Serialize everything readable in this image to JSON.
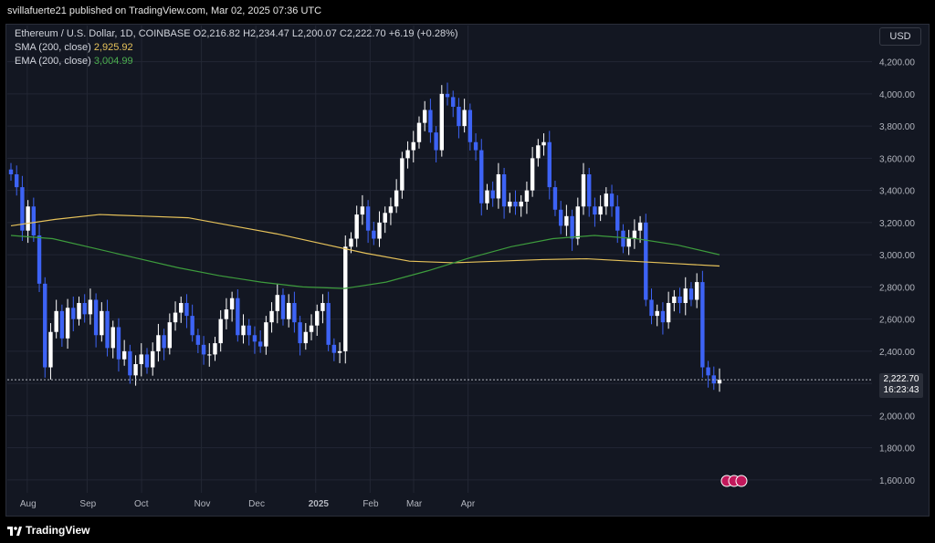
{
  "header": {
    "publisher_line": "svillafuerte21 published on TradingView.com, Mar 02, 2025 07:36 UTC"
  },
  "legend": {
    "symbol": "Ethereum / U.S. Dollar, 1D, COINBASE",
    "ohlc": "O2,216.82  H2,234.47  L2,200.07  C2,222.70  +6.19 (+0.28%)",
    "sma_label": "SMA (200, close)",
    "sma_value": "2,925.92",
    "ema_label": "EMA (200, close)",
    "ema_value": "3,004.99"
  },
  "currency_button": "USD",
  "last_price": {
    "value": "2,222.70",
    "countdown": "16:23:43"
  },
  "footer": {
    "brand": "TradingView"
  },
  "colors": {
    "up": "#ffffff",
    "down": "#3d63f5",
    "sma": "#e6c25a",
    "ema": "#3d9c3d",
    "background": "#131722",
    "grid": "#232734"
  },
  "chart_data": {
    "type": "candlestick",
    "title": "Ethereum / U.S. Dollar, 1D, COINBASE",
    "y_axis": {
      "ticks": [
        "4,200.00",
        "4,000.00",
        "3,800.00",
        "3,600.00",
        "3,400.00",
        "3,200.00",
        "3,000.00",
        "2,800.00",
        "2,600.00",
        "2,400.00",
        "2,200.00",
        "2,000.00",
        "1,800.00",
        "1,600.00"
      ],
      "ylim": [
        1520,
        4300
      ]
    },
    "x_axis": {
      "ticks": [
        "Aug",
        "Sep",
        "Oct",
        "Nov",
        "Dec",
        "2025",
        "Feb",
        "Mar",
        "Apr"
      ]
    },
    "close_series": [
      3500,
      3420,
      3150,
      3300,
      3120,
      2820,
      2300,
      2520,
      2650,
      2480,
      2670,
      2600,
      2700,
      2630,
      2720,
      2500,
      2650,
      2420,
      2550,
      2350,
      2400,
      2250,
      2320,
      2380,
      2300,
      2400,
      2500,
      2420,
      2580,
      2640,
      2700,
      2620,
      2500,
      2440,
      2380,
      2380,
      2450,
      2600,
      2660,
      2730,
      2500,
      2560,
      2500,
      2460,
      2430,
      2580,
      2650,
      2750,
      2600,
      2700,
      2580,
      2450,
      2520,
      2560,
      2650,
      2700,
      2440,
      2390,
      2400,
      3050,
      3100,
      3250,
      3300,
      3150,
      3100,
      3200,
      3260,
      3300,
      3400,
      3600,
      3650,
      3700,
      3820,
      3900,
      3760,
      3650,
      4000,
      3980,
      3920,
      3800,
      3900,
      3700,
      3650,
      3320,
      3400,
      3350,
      3500,
      3300,
      3330,
      3300,
      3330,
      3400,
      3600,
      3680,
      3700,
      3420,
      3280,
      3180,
      3240,
      3100,
      3300,
      3500,
      3300,
      3250,
      3300,
      3380,
      3300,
      3150,
      3050,
      3100,
      3150,
      3200,
      2720,
      2620,
      2650,
      2580,
      2700,
      2740,
      2700,
      2790,
      2720,
      2830,
      2300,
      2250,
      2200,
      2222.7
    ],
    "sma_200": [
      3180,
      3220,
      3250,
      3240,
      3230,
      3180,
      3130,
      3070,
      3010,
      2960,
      2950,
      2960,
      2970,
      2975,
      2960,
      2945,
      2930
    ],
    "ema_200": [
      3120,
      3100,
      3040,
      2980,
      2920,
      2870,
      2830,
      2800,
      2790,
      2830,
      2900,
      2980,
      3050,
      3100,
      3120,
      3100,
      3060,
      3000
    ],
    "last_close": 2222.7
  }
}
